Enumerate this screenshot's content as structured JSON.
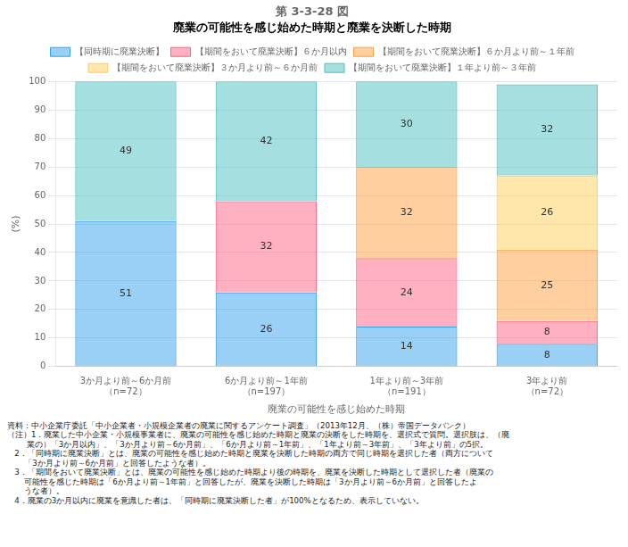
{
  "chart_data": {
    "type": "bar",
    "stacked": true,
    "title": "第 3-3-28 図",
    "subtitle": "廃業の可能性を感じ始めた時期と廃業を決断した時期",
    "categories": [
      "3か月より前～6か月前\n（n=72）",
      "6か月より前～1年前\n（n=197）",
      "1年より前～3年前\n（n=191）",
      "3年より前\n（n=72）"
    ],
    "xlabel": "廃業の可能性を感じ始めた時期",
    "ylabel": "(%)",
    "series": [
      {
        "name": "【同時期に廃業決断】",
        "values": [
          51,
          26,
          14,
          8
        ]
      },
      {
        "name": "【期間をおいて廃業決断】６か月以内",
        "values": [
          0,
          32,
          24,
          8
        ]
      },
      {
        "name": "【期間をおいて廃業決断】６か月より前～１年前",
        "values": [
          0,
          0,
          32,
          25
        ]
      },
      {
        "name": "【期間をおいて廃業決断】３か月より前～６か月前",
        "values": [
          0,
          0,
          0,
          26
        ]
      },
      {
        "name": "【期間をおいて廃業決断】１年より前～３年前",
        "values": [
          49,
          42,
          30,
          32
        ]
      }
    ],
    "ylim": [
      0,
      100
    ],
    "yticks": [
      0,
      10,
      20,
      30,
      40,
      50,
      60,
      70,
      80,
      90,
      100
    ],
    "grid": true,
    "data_labels": true,
    "legend": "top",
    "annotations": [
      "資料：中小企業庁委託「中小企業者・小規模企業者の廃業に関するアンケート調査」（2013年12月、（株）帝国データバンク）",
      "（注）1．廃業した中小企業・小規模事業者に、廃業の可能性を感じ始めた時期と廃業の決断をした時期を、選択式で質問。選択肢は、（廃",
      "        業の）「3か月以内」、「3か月より前～6か月前」、「6か月より前～1年前」、「1年より前～3年前」、「3年より前」の5択。",
      "   2．「同時期に廃業決断」とは、廃業の可能性を感じ始めた時期と廃業を決断した時期の両方で同じ時期を選択した者（両方について",
      "       「3か月より前～6か月前」と回答したような者）。",
      "   3．「期間をおいて廃業決断」とは、廃業の可能性を感じ始めた時期より後の時期を、廃業を決断した時期として選択した者（廃業の",
      "       可能性を感じた時期は「6か月より前～1年前」と回答したが、廃業を決断した時期は「3か月より前～6か月前」と回答したよ",
      "       うな者）。",
      "   4．廃業の3か月以内に廃業を意識した者は、「同時期に廃業決断した者」が100%となるため、表示していない。"
    ]
  }
}
